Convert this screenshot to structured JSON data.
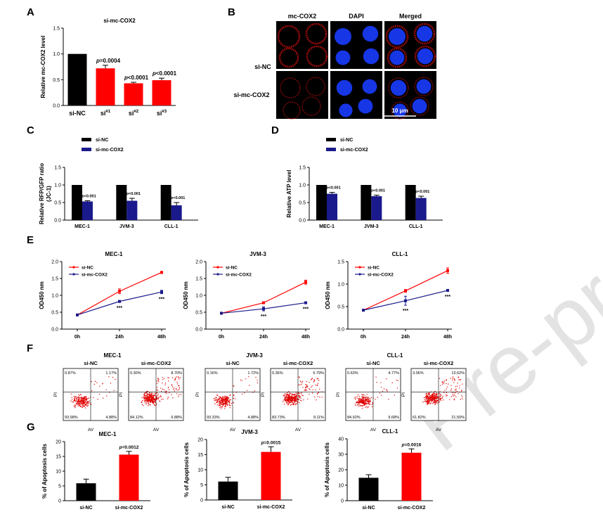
{
  "watermark": "Pre-proof",
  "panels": {
    "A": {
      "letter": "A"
    },
    "B": {
      "letter": "B",
      "col_headers": [
        "mc-COX2",
        "DAPI",
        "Merged"
      ],
      "row_labels": [
        "si-NC",
        "si-mc-COX2"
      ],
      "scale_bar": "10 μm"
    },
    "C": {
      "letter": "C"
    },
    "D": {
      "letter": "D"
    },
    "E": {
      "letter": "E"
    },
    "F": {
      "letter": "F"
    },
    "G": {
      "letter": "G"
    }
  },
  "flow_cytometry": [
    {
      "cell_line": "MEC-1",
      "plots": [
        {
          "label": "si-NC",
          "ul": "0.87%",
          "ur": "1.17%",
          "ll": "93.98%",
          "lr": "4.88%"
        },
        {
          "label": "si-mc-COX2",
          "ul": "0.30%",
          "ur": "8.70%",
          "ll": "84.12%",
          "lr": "6.88%"
        }
      ]
    },
    {
      "cell_line": "JVM-3",
      "plots": [
        {
          "label": "si-NC",
          "ul": "0.16%",
          "ur": "1.72%",
          "ll": "93.33%",
          "lr": "4.88%"
        },
        {
          "label": "si-mc-COX2",
          "ul": "0.36%",
          "ur": "6.79%",
          "ll": "83.73%",
          "lr": "9.11%"
        }
      ]
    },
    {
      "cell_line": "CLL-1",
      "plots": [
        {
          "label": "si-NC",
          "ul": "0.63%",
          "ur": "4.77%",
          "ll": "84.92%",
          "lr": "9.68%"
        },
        {
          "label": "si-mc-COX2",
          "ul": "3.06%",
          "ur": "13.62%",
          "ll": "61.82%",
          "lr": "21.50%"
        }
      ]
    }
  ],
  "flow_axes": {
    "x": "AV",
    "y": "PI"
  },
  "chart_data": [
    {
      "id": "A",
      "type": "bar",
      "title": "si-mc-COX2",
      "ylabel": "Relative mc-COX2 level",
      "ylim": [
        0,
        1.5
      ],
      "yticks": [
        0,
        0.5,
        1.0,
        1.5
      ],
      "categories": [
        "si-NC",
        "si#1",
        "si#2",
        "si#3"
      ],
      "values": [
        1.0,
        0.72,
        0.43,
        0.49
      ],
      "errors": [
        0,
        0.06,
        0.02,
        0.04
      ],
      "colors": [
        "#000000",
        "#ff0000",
        "#ff0000",
        "#ff0000"
      ],
      "annotations": [
        "",
        "p=0.0004",
        "p<0.0001",
        "p<0.0001"
      ]
    },
    {
      "id": "C",
      "type": "bar",
      "ylabel": "Relative RFP/GFP ratio",
      "ylabel2": "(JC-1)",
      "ylim": [
        0,
        1.5
      ],
      "yticks": [
        0,
        0.5,
        1.0,
        1.5
      ],
      "categories": [
        "MEC-1",
        "JVM-3",
        "CLL-1"
      ],
      "series": [
        {
          "name": "si-NC",
          "color": "#000000",
          "values": [
            1.0,
            1.0,
            1.0
          ],
          "errors": [
            0,
            0,
            0
          ]
        },
        {
          "name": "si-mc-COX2",
          "color": "#1a1a8c",
          "values": [
            0.53,
            0.55,
            0.42
          ],
          "errors": [
            0.02,
            0.07,
            0.08
          ]
        }
      ],
      "annotations": [
        "p<0.001",
        "p<0.001",
        "p<0.001"
      ]
    },
    {
      "id": "D",
      "type": "bar",
      "ylabel": "Relative ATP level",
      "ylim": [
        0,
        1.5
      ],
      "yticks": [
        0,
        0.5,
        1.0,
        1.5
      ],
      "categories": [
        "MEC-1",
        "JVM-3",
        "CLL-1"
      ],
      "series": [
        {
          "name": "si-NC",
          "color": "#000000",
          "values": [
            1.0,
            1.0,
            1.0
          ],
          "errors": [
            0,
            0,
            0
          ]
        },
        {
          "name": "si-mc-COX2",
          "color": "#1a1a8c",
          "values": [
            0.75,
            0.68,
            0.63
          ],
          "errors": [
            0.04,
            0.03,
            0.05
          ]
        }
      ],
      "annotations": [
        "p<0.001",
        "p<0.001",
        "p<0.001"
      ]
    },
    {
      "id": "E1",
      "type": "line",
      "title": "MEC-1",
      "ylabel": "OD450 nm",
      "ylim": [
        0,
        2.0
      ],
      "yticks": [
        0,
        0.5,
        1.0,
        1.5,
        2.0
      ],
      "x": [
        "0h",
        "24h",
        "48h"
      ],
      "series": [
        {
          "name": "si-NC",
          "color": "#ff0000",
          "values": [
            0.42,
            1.12,
            1.68
          ],
          "errors": [
            0.02,
            0.07,
            0.03
          ]
        },
        {
          "name": "si-mc-COX2",
          "color": "#1a1a8c",
          "values": [
            0.42,
            0.82,
            1.1
          ],
          "errors": [
            0.02,
            0.03,
            0.05
          ]
        }
      ],
      "annotations": [
        "",
        "***",
        "***"
      ]
    },
    {
      "id": "E2",
      "type": "line",
      "title": "JVM-3",
      "ylabel": "OD450 nm",
      "ylim": [
        0,
        2.0
      ],
      "yticks": [
        0,
        0.5,
        1.0,
        1.5,
        2.0
      ],
      "x": [
        "0h",
        "24h",
        "48h"
      ],
      "series": [
        {
          "name": "si-NC",
          "color": "#ff0000",
          "values": [
            0.47,
            0.78,
            1.39
          ],
          "errors": [
            0.02,
            0.02,
            0.06
          ]
        },
        {
          "name": "si-mc-COX2",
          "color": "#1a1a8c",
          "values": [
            0.47,
            0.6,
            0.78
          ],
          "errors": [
            0.02,
            0.06,
            0.02
          ]
        }
      ],
      "annotations": [
        "",
        "***",
        "***"
      ]
    },
    {
      "id": "E3",
      "type": "line",
      "title": "CLL-1",
      "ylabel": "OD450 nm",
      "ylim": [
        0,
        1.5
      ],
      "yticks": [
        0,
        0.5,
        1.0,
        1.5
      ],
      "x": [
        "0h",
        "24h",
        "48h"
      ],
      "series": [
        {
          "name": "si-NC",
          "color": "#ff0000",
          "values": [
            0.42,
            0.85,
            1.3
          ],
          "errors": [
            0.01,
            0.03,
            0.06
          ]
        },
        {
          "name": "si-mc-COX2",
          "color": "#1a1a8c",
          "values": [
            0.42,
            0.63,
            0.86
          ],
          "errors": [
            0.01,
            0.1,
            0.02
          ]
        }
      ],
      "annotations": [
        "",
        "***",
        "***"
      ]
    },
    {
      "id": "G1",
      "type": "bar",
      "title": "MEC-1",
      "ylabel": "% of Apoptosis cells",
      "ylim": [
        0,
        20
      ],
      "yticks": [
        0,
        5,
        10,
        15,
        20
      ],
      "categories": [
        "si-NC",
        "si-mc-COX2"
      ],
      "values": [
        5.9,
        15.6
      ],
      "errors": [
        1.4,
        1.1
      ],
      "colors": [
        "#000000",
        "#ff0000"
      ],
      "annotations": [
        "",
        "p=0.0012"
      ]
    },
    {
      "id": "G2",
      "type": "bar",
      "title": "JVM-3",
      "ylabel": "% of Apoptosis cells",
      "ylim": [
        0,
        20
      ],
      "yticks": [
        0,
        5,
        10,
        15,
        20
      ],
      "categories": [
        "si-NC",
        "si-mc-COX2"
      ],
      "values": [
        6.1,
        15.9
      ],
      "errors": [
        1.4,
        1.7
      ],
      "colors": [
        "#000000",
        "#ff0000"
      ],
      "annotations": [
        "",
        "p=0.0015"
      ]
    },
    {
      "id": "G3",
      "type": "bar",
      "title": "CLL-1",
      "ylabel": "% of Apoptosis cells",
      "ylim": [
        0,
        40
      ],
      "yticks": [
        0,
        10,
        20,
        30,
        40
      ],
      "categories": [
        "si-NC",
        "si-mc-COX2"
      ],
      "values": [
        14.8,
        31.0
      ],
      "errors": [
        2.0,
        2.5
      ],
      "colors": [
        "#000000",
        "#ff0000"
      ],
      "annotations": [
        "",
        "p=0.0016"
      ]
    }
  ]
}
